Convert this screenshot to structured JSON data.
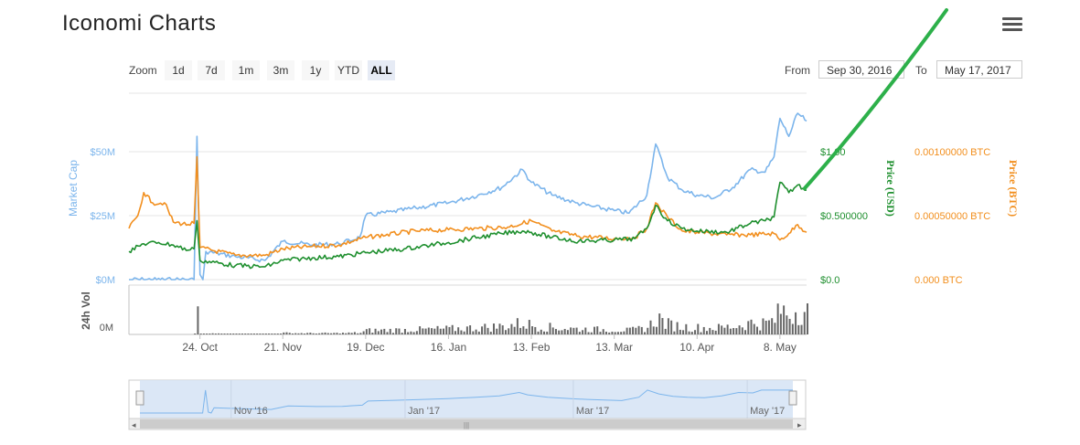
{
  "title": "Iconomi Charts",
  "menu_icon": "hamburger-menu-icon",
  "zoom": {
    "label": "Zoom",
    "buttons": [
      "1d",
      "7d",
      "1m",
      "3m",
      "1y",
      "YTD",
      "ALL"
    ],
    "active": "ALL"
  },
  "range": {
    "from_label": "From",
    "from_value": "Sep 30, 2016",
    "to_label": "To",
    "to_value": "May 17, 2017"
  },
  "colors": {
    "market_cap": "#7cb5ec",
    "price_usd": "#1e8f2e",
    "price_btc": "#f28f1e",
    "volume": "#666666",
    "navigator_fill": "#d5e3f5",
    "annotation": "#2db04a"
  },
  "chart_data": {
    "type": "line",
    "x_start": "2016-09-30",
    "x_end": "2017-05-17",
    "x_tick_labels": [
      "24. Oct",
      "21. Nov",
      "19. Dec",
      "16. Jan",
      "13. Feb",
      "13. Mar",
      "10. Apr",
      "8. May"
    ],
    "x_tick_dates": [
      "2016-10-24",
      "2016-11-21",
      "2016-12-19",
      "2017-01-16",
      "2017-02-13",
      "2017-03-13",
      "2017-04-10",
      "2017-05-08"
    ],
    "axes": {
      "market_cap": {
        "label": "Market Cap",
        "ticks": [
          "$0M",
          "$25M",
          "$50M"
        ],
        "range": [
          0,
          50000000
        ]
      },
      "price_usd": {
        "label": "Price (USD)",
        "ticks": [
          "$0.0",
          "$0.500000",
          "$1.00"
        ],
        "range": [
          0,
          1.0
        ]
      },
      "price_btc": {
        "label": "Price (BTC)",
        "ticks": [
          "0.000 BTC",
          "0.00050000 BTC",
          "0.00100000 BTC"
        ],
        "range": [
          0,
          0.001
        ]
      },
      "volume": {
        "label": "24h Vol",
        "ticks": [
          "0M"
        ]
      }
    },
    "series": [
      {
        "key": "market_cap",
        "points": [
          [
            "2016-09-30",
            0
          ],
          [
            "2016-10-15",
            0
          ],
          [
            "2016-10-22",
            0
          ],
          [
            "2016-10-23",
            56000000
          ],
          [
            "2016-10-24",
            2000000
          ],
          [
            "2016-10-25",
            0
          ],
          [
            "2016-10-26",
            11000000
          ],
          [
            "2016-11-05",
            9000000
          ],
          [
            "2016-11-15",
            7500000
          ],
          [
            "2016-11-21",
            15000000
          ],
          [
            "2016-12-01",
            13500000
          ],
          [
            "2016-12-10",
            14000000
          ],
          [
            "2016-12-17",
            16500000
          ],
          [
            "2016-12-19",
            25000000
          ],
          [
            "2016-12-28",
            26500000
          ],
          [
            "2017-01-05",
            28000000
          ],
          [
            "2017-01-16",
            30000000
          ],
          [
            "2017-01-26",
            33000000
          ],
          [
            "2017-02-03",
            36000000
          ],
          [
            "2017-02-10",
            43000000
          ],
          [
            "2017-02-13",
            38000000
          ],
          [
            "2017-02-20",
            33000000
          ],
          [
            "2017-02-28",
            30000000
          ],
          [
            "2017-03-06",
            28500000
          ],
          [
            "2017-03-13",
            27000000
          ],
          [
            "2017-03-18",
            26000000
          ],
          [
            "2017-03-24",
            33000000
          ],
          [
            "2017-03-27",
            53000000
          ],
          [
            "2017-03-31",
            40000000
          ],
          [
            "2017-04-05",
            35000000
          ],
          [
            "2017-04-10",
            33000000
          ],
          [
            "2017-04-16",
            32000000
          ],
          [
            "2017-04-22",
            36000000
          ],
          [
            "2017-04-28",
            43000000
          ],
          [
            "2017-05-03",
            42000000
          ],
          [
            "2017-05-06",
            48000000
          ],
          [
            "2017-05-08",
            63000000
          ],
          [
            "2017-05-11",
            56000000
          ],
          [
            "2017-05-14",
            65000000
          ],
          [
            "2017-05-17",
            62000000
          ]
        ]
      },
      {
        "key": "price_usd",
        "points": [
          [
            "2016-09-30",
            0.22
          ],
          [
            "2016-10-05",
            0.28
          ],
          [
            "2016-10-10",
            0.29
          ],
          [
            "2016-10-15",
            0.27
          ],
          [
            "2016-10-20",
            0.23
          ],
          [
            "2016-10-22",
            0.24
          ],
          [
            "2016-10-23",
            0.46
          ],
          [
            "2016-10-24",
            0.15
          ],
          [
            "2016-11-05",
            0.11
          ],
          [
            "2016-11-15",
            0.1
          ],
          [
            "2016-11-21",
            0.15
          ],
          [
            "2016-12-01",
            0.17
          ],
          [
            "2016-12-10",
            0.18
          ],
          [
            "2016-12-19",
            0.21
          ],
          [
            "2017-01-01",
            0.24
          ],
          [
            "2017-01-16",
            0.29
          ],
          [
            "2017-01-26",
            0.33
          ],
          [
            "2017-02-03",
            0.36
          ],
          [
            "2017-02-10",
            0.38
          ],
          [
            "2017-02-13",
            0.37
          ],
          [
            "2017-02-20",
            0.33
          ],
          [
            "2017-03-01",
            0.3
          ],
          [
            "2017-03-13",
            0.31
          ],
          [
            "2017-03-20",
            0.32
          ],
          [
            "2017-03-24",
            0.4
          ],
          [
            "2017-03-27",
            0.58
          ],
          [
            "2017-03-31",
            0.46
          ],
          [
            "2017-04-05",
            0.4
          ],
          [
            "2017-04-10",
            0.38
          ],
          [
            "2017-04-20",
            0.37
          ],
          [
            "2017-04-28",
            0.44
          ],
          [
            "2017-05-03",
            0.46
          ],
          [
            "2017-05-06",
            0.49
          ],
          [
            "2017-05-08",
            0.76
          ],
          [
            "2017-05-11",
            0.68
          ],
          [
            "2017-05-14",
            0.74
          ],
          [
            "2017-05-17",
            0.7
          ]
        ]
      },
      {
        "key": "price_btc",
        "points": [
          [
            "2016-09-30",
            0.0004
          ],
          [
            "2016-10-03",
            0.0005
          ],
          [
            "2016-10-05",
            0.00068
          ],
          [
            "2016-10-08",
            0.0006
          ],
          [
            "2016-10-12",
            0.0006
          ],
          [
            "2016-10-15",
            0.00045
          ],
          [
            "2016-10-20",
            0.00043
          ],
          [
            "2016-10-22",
            0.00044
          ],
          [
            "2016-10-23",
            0.00096
          ],
          [
            "2016-10-24",
            0.00025
          ],
          [
            "2016-11-05",
            0.00019
          ],
          [
            "2016-11-15",
            0.00019
          ],
          [
            "2016-11-21",
            0.00024
          ],
          [
            "2016-12-01",
            0.00026
          ],
          [
            "2016-12-10",
            0.00027
          ],
          [
            "2016-12-19",
            0.00033
          ],
          [
            "2017-01-05",
            0.00038
          ],
          [
            "2017-01-16",
            0.00039
          ],
          [
            "2017-01-26",
            0.0004
          ],
          [
            "2017-02-05",
            0.00041
          ],
          [
            "2017-02-13",
            0.00046
          ],
          [
            "2017-02-20",
            0.00038
          ],
          [
            "2017-03-01",
            0.00034
          ],
          [
            "2017-03-13",
            0.00032
          ],
          [
            "2017-03-20",
            0.00033
          ],
          [
            "2017-03-24",
            0.0004
          ],
          [
            "2017-03-27",
            0.0006
          ],
          [
            "2017-03-31",
            0.00049
          ],
          [
            "2017-04-05",
            0.00038
          ],
          [
            "2017-04-10",
            0.00037
          ],
          [
            "2017-04-20",
            0.00035
          ],
          [
            "2017-04-28",
            0.00035
          ],
          [
            "2017-05-06",
            0.00036
          ],
          [
            "2017-05-08",
            0.00031
          ],
          [
            "2017-05-11",
            0.00036
          ],
          [
            "2017-05-14",
            0.00043
          ],
          [
            "2017-05-17",
            0.00037
          ]
        ]
      }
    ],
    "navigator_labels": [
      "Nov '16",
      "Jan '17",
      "Mar '17",
      "May '17"
    ],
    "navigator_dates": [
      "2016-11-01",
      "2017-01-01",
      "2017-03-01",
      "2017-05-01"
    ]
  }
}
